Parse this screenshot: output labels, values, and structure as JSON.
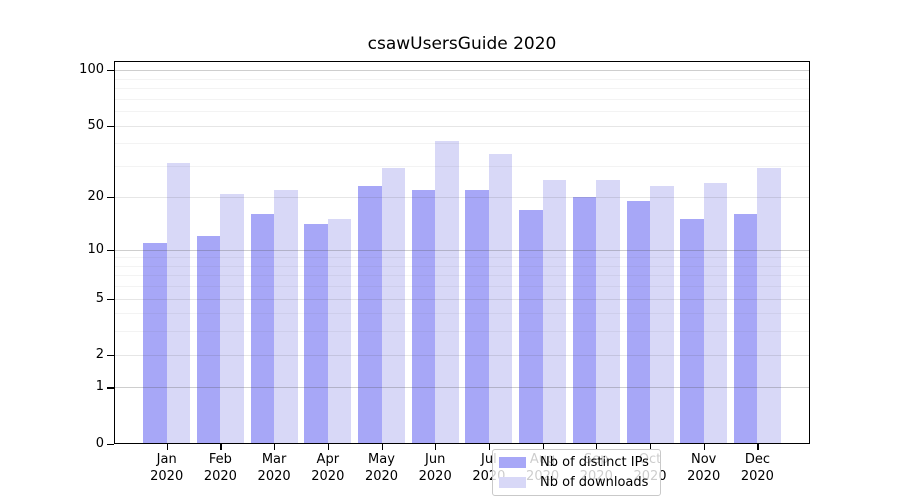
{
  "chart_data": {
    "type": "bar",
    "title": "csawUsersGuide 2020",
    "categories": [
      "Jan 2020",
      "Feb 2020",
      "Mar 2020",
      "Apr 2020",
      "May 2020",
      "Jun 2020",
      "Jul 2020",
      "Aug 2020",
      "Sep 2020",
      "Oct 2020",
      "Nov 2020",
      "Dec 2020"
    ],
    "x_tick_months": [
      "Jan",
      "Feb",
      "Mar",
      "Apr",
      "May",
      "Jun",
      "Jul",
      "Aug",
      "Sep",
      "Oct",
      "Nov",
      "Dec"
    ],
    "x_tick_year": "2020",
    "series": [
      {
        "name": "Nb of distinct IPs",
        "color": "#a7a7f7",
        "values": [
          11,
          12,
          16,
          14,
          23,
          22,
          22,
          17,
          20,
          19,
          15,
          16
        ]
      },
      {
        "name": "Nb of downloads",
        "color": "#d8d8f7",
        "values": [
          31,
          21,
          22,
          15,
          29,
          41,
          35,
          25,
          25,
          23,
          24,
          29
        ]
      }
    ],
    "yscale": "symlog",
    "ylim": [
      0,
      111
    ],
    "y_major_ticks": [
      0,
      1,
      2,
      5,
      10,
      20,
      50,
      100
    ],
    "y_minor_ticks": [
      3,
      4,
      6,
      7,
      8,
      9,
      30,
      40,
      60,
      70,
      80,
      90
    ],
    "grid": "horizontal",
    "legend_position": "lower-center"
  },
  "colors": {
    "grid_power10": "rgba(80,80,80,0.28)",
    "grid_major": "rgba(80,80,80,0.14)",
    "grid_minor": "rgba(80,80,80,0.07)",
    "axis": "#000000"
  }
}
